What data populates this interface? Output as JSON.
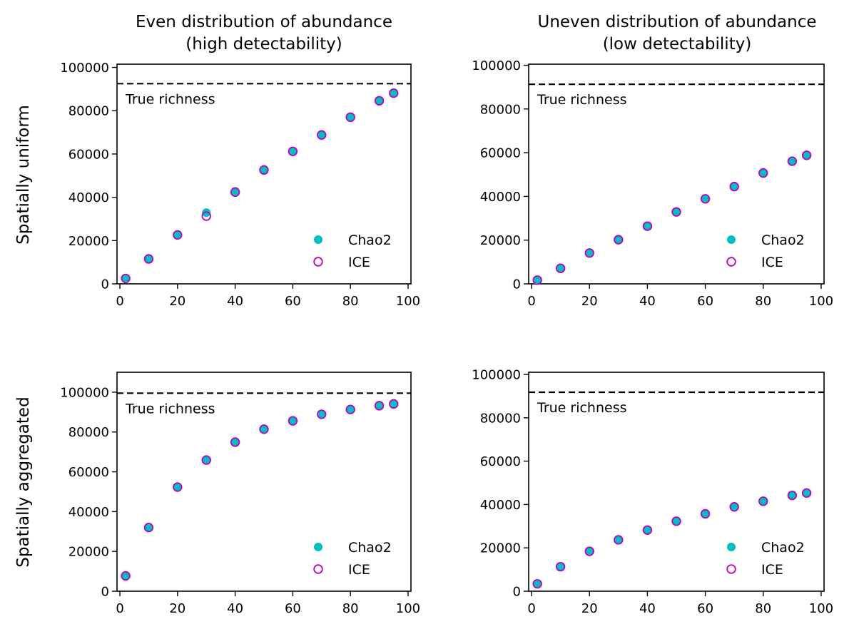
{
  "figure": {
    "col_titles": [
      [
        "Even distribution of abundance",
        "(high detectability)"
      ],
      [
        "Uneven distribution of abundance",
        "(low detectability)"
      ]
    ],
    "row_labels": [
      "Spatially uniform",
      "Spatially aggregated"
    ],
    "colors": {
      "chao2": "#00bfbf",
      "ice": "#bf00bf",
      "reference": "#000000"
    }
  },
  "chart_data": [
    {
      "type": "scatter",
      "panel": "top-left",
      "x": [
        2,
        10,
        20,
        30,
        40,
        50,
        60,
        70,
        80,
        90,
        95
      ],
      "series": [
        {
          "name": "Chao2",
          "marker": "filled",
          "values": [
            2500,
            11800,
            22800,
            32900,
            42700,
            52800,
            61300,
            69000,
            77200,
            84800,
            88300
          ]
        },
        {
          "name": "ICE",
          "marker": "open",
          "values": [
            2500,
            11500,
            22600,
            31300,
            42400,
            52600,
            61200,
            68800,
            77000,
            84600,
            88100
          ]
        }
      ],
      "reference_line": {
        "y": 92500,
        "label": "True richness"
      },
      "xlim": [
        -1,
        101
      ],
      "ylim": [
        0,
        101500
      ],
      "xticks": [
        0,
        20,
        40,
        60,
        80,
        100
      ],
      "yticks": [
        0,
        20000,
        40000,
        60000,
        80000,
        100000
      ],
      "legend": "lower-right"
    },
    {
      "type": "scatter",
      "panel": "top-right",
      "x": [
        2,
        10,
        20,
        30,
        40,
        50,
        60,
        70,
        80,
        90,
        95
      ],
      "series": [
        {
          "name": "Chao2",
          "marker": "filled",
          "values": [
            1800,
            7200,
            14200,
            20300,
            26500,
            33000,
            39000,
            44600,
            50800,
            56200,
            58900
          ]
        },
        {
          "name": "ICE",
          "marker": "open",
          "values": [
            1700,
            7100,
            14100,
            20200,
            26400,
            32900,
            38900,
            44500,
            50700,
            56100,
            58800
          ]
        }
      ],
      "reference_line": {
        "y": 91300,
        "label": "True richness"
      },
      "xlim": [
        -1,
        101
      ],
      "ylim": [
        0,
        100500
      ],
      "xticks": [
        0,
        20,
        40,
        60,
        80,
        100
      ],
      "yticks": [
        0,
        20000,
        40000,
        60000,
        80000,
        100000
      ],
      "legend": "lower-right"
    },
    {
      "type": "scatter",
      "panel": "bottom-left",
      "x": [
        2,
        10,
        20,
        30,
        40,
        50,
        60,
        70,
        80,
        90,
        95
      ],
      "series": [
        {
          "name": "Chao2",
          "marker": "filled",
          "values": [
            7800,
            32200,
            52500,
            66000,
            75000,
            81500,
            85700,
            89000,
            91400,
            93300,
            94200
          ]
        },
        {
          "name": "ICE",
          "marker": "open",
          "values": [
            7700,
            32000,
            52300,
            65900,
            74900,
            81400,
            85600,
            88900,
            91300,
            93200,
            94100
          ]
        }
      ],
      "reference_line": {
        "y": 99500,
        "label": "True richness"
      },
      "xlim": [
        -1,
        101
      ],
      "ylim": [
        0,
        110000
      ],
      "xticks": [
        0,
        20,
        40,
        60,
        80,
        100
      ],
      "yticks": [
        0,
        20000,
        40000,
        60000,
        80000,
        100000
      ],
      "legend": "lower-right"
    },
    {
      "type": "scatter",
      "panel": "bottom-right",
      "x": [
        2,
        10,
        20,
        30,
        40,
        50,
        60,
        70,
        80,
        90,
        95
      ],
      "series": [
        {
          "name": "Chao2",
          "marker": "filled",
          "values": [
            3500,
            11400,
            18500,
            23800,
            28300,
            32400,
            35800,
            39000,
            41600,
            44300,
            45400
          ]
        },
        {
          "name": "ICE",
          "marker": "open",
          "values": [
            3400,
            11300,
            18400,
            23700,
            28200,
            32300,
            35700,
            38900,
            41500,
            44200,
            45300
          ]
        }
      ],
      "reference_line": {
        "y": 91800,
        "label": "True richness"
      },
      "xlim": [
        -1,
        101
      ],
      "ylim": [
        0,
        101000
      ],
      "xticks": [
        0,
        20,
        40,
        60,
        80,
        100
      ],
      "yticks": [
        0,
        20000,
        40000,
        60000,
        80000,
        100000
      ],
      "legend": "lower-right"
    }
  ]
}
